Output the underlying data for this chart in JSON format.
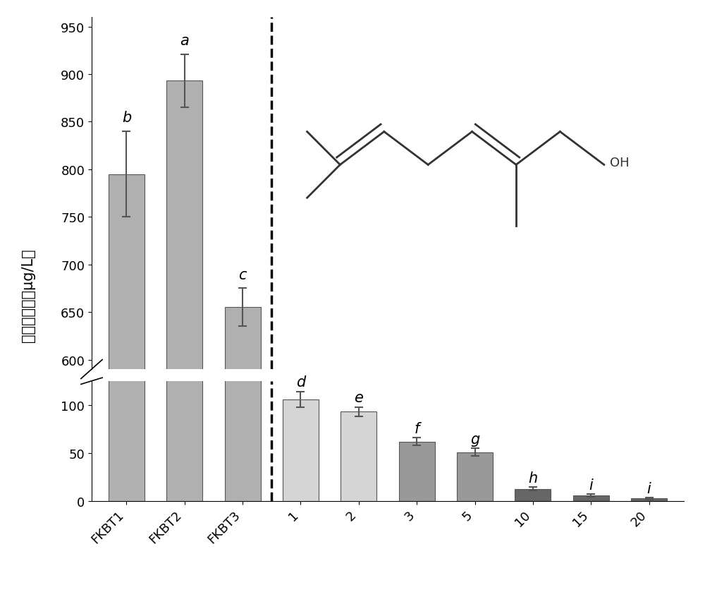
{
  "categories": [
    "FKBT1",
    "FKBT2",
    "FKBT3",
    "1",
    "2",
    "3",
    "5",
    "10",
    "15",
    "20"
  ],
  "values": [
    795,
    893,
    655,
    106,
    93,
    62,
    51,
    13,
    6,
    3
  ],
  "errors": [
    45,
    28,
    20,
    8,
    5,
    4,
    4,
    2,
    1.5,
    1
  ],
  "letters": [
    "b",
    "a",
    "c",
    "d",
    "e",
    "f",
    "g",
    "h",
    "i",
    "i"
  ],
  "bar_colors": [
    "#b0b0b0",
    "#b0b0b0",
    "#b0b0b0",
    "#d5d5d5",
    "#d5d5d5",
    "#999999",
    "#999999",
    "#666666",
    "#666666",
    "#666666"
  ],
  "ylabel": "香叶醇浓度（μg/L）",
  "ylabel_fontsize": 15,
  "tick_fontsize": 13,
  "letter_fontsize": 15,
  "bar_width": 0.62,
  "upper_ylim": [
    590,
    960
  ],
  "lower_ylim": [
    0,
    125
  ],
  "lower_yticks": [
    0,
    50,
    100
  ],
  "upper_yticks": [
    600,
    650,
    700,
    750,
    800,
    850,
    900,
    950
  ],
  "figsize": [
    10.0,
    8.37
  ],
  "dpi": 100,
  "background_color": "#ffffff"
}
